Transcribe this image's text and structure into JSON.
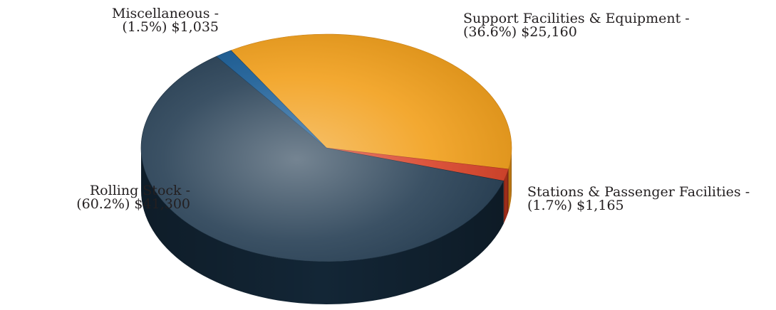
{
  "chart_data": {
    "type": "pie",
    "title": "",
    "unit_prefix": "$",
    "slices": [
      {
        "name": "Support Facilities & Equipment",
        "label_line1": "Support Facilities & Equipment -",
        "label_line2": "(36.6%) $25,160",
        "percent": 36.6,
        "value": 25160,
        "color": "#f2a11f",
        "side_color": "#c97f14"
      },
      {
        "name": "Stations & Passenger Facilities",
        "label_line1": "Stations & Passenger Facilities -",
        "label_line2": "(1.7%) $1,165",
        "percent": 1.7,
        "value": 1165,
        "color": "#d9452b",
        "side_color": "#a8301c"
      },
      {
        "name": "Rolling Stock",
        "label_line1": "Rolling Stock -",
        "label_line2": "(60.2%) $41,300",
        "percent": 60.2,
        "value": 41300,
        "color": "#2a4257",
        "side_color": "#132636"
      },
      {
        "name": "Miscellaneous",
        "label_line1": "Miscellaneous -",
        "label_line2": "(1.5%) $1,035",
        "percent": 1.5,
        "value": 1035,
        "color": "#1a5d96",
        "side_color": "#0e3a60"
      }
    ],
    "legend": "none",
    "style": "3d"
  }
}
